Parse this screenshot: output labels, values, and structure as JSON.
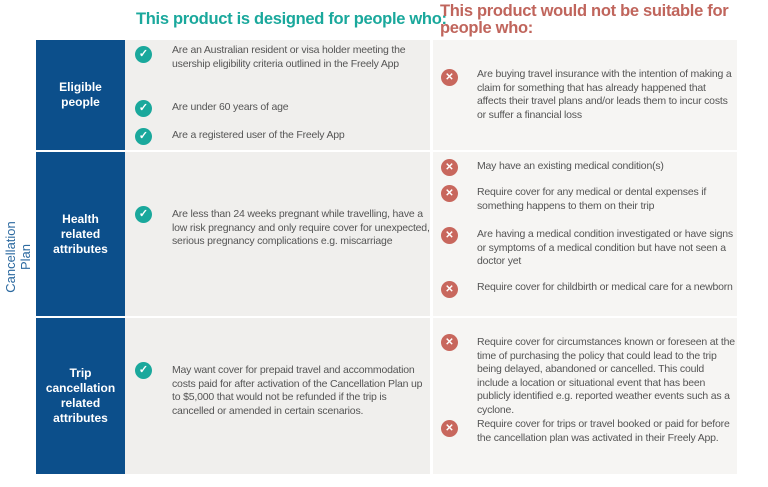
{
  "headers": {
    "suitable": "This product is designed for people who:",
    "not_suitable": "This product would not be suitable for people who:"
  },
  "side_label": "Cancellation Plan",
  "colors": {
    "label_bg": "#0c4f8b",
    "check": "#1aa89c",
    "cross": "#c8675d"
  },
  "icons": {
    "suitable": "check-circle-icon",
    "not_suitable": "x-circle-icon"
  },
  "rows": [
    {
      "label": "Eligible people",
      "suitable": [
        "Are an Australian resident or visa holder meeting the usership eligibility criteria outlined in the Freely App",
        "Are under 60 years of age",
        "Are a registered user of the Freely App"
      ],
      "not_suitable": [
        "Are buying travel insurance with the intention of making a claim for something that has already happened that affects their travel plans and/or leads them to incur costs or suffer a financial loss"
      ]
    },
    {
      "label": "Health related attributes",
      "suitable": [
        "Are less than 24 weeks pregnant while travelling, have a low risk pregnancy and only require cover for unexpected, serious pregnancy complications e.g. miscarriage"
      ],
      "not_suitable": [
        "May have an existing medical condition(s)",
        "Require cover for any medical or dental expenses if something happens to them on their trip",
        "Are having a medical condition investigated or have signs or symptoms of a medical condition but have not seen a doctor yet",
        "Require cover for childbirth or medical care for a newborn"
      ]
    },
    {
      "label": "Trip cancellation related attributes",
      "suitable": [
        "May want cover for prepaid travel and accommodation costs paid for after activation of the Cancellation Plan up to $5,000 that would not be refunded if the trip is cancelled or amended in certain scenarios."
      ],
      "not_suitable": [
        "Require cover for circumstances known or foreseen at the time of purchasing the policy that could lead to the trip being delayed, abandoned or cancelled. This could include a location or situational event that has been publicly identified e.g. reported weather events such as a cyclone.",
        "Require cover for trips or travel booked or paid for before the cancellation plan was activated in their Freely App."
      ]
    }
  ]
}
